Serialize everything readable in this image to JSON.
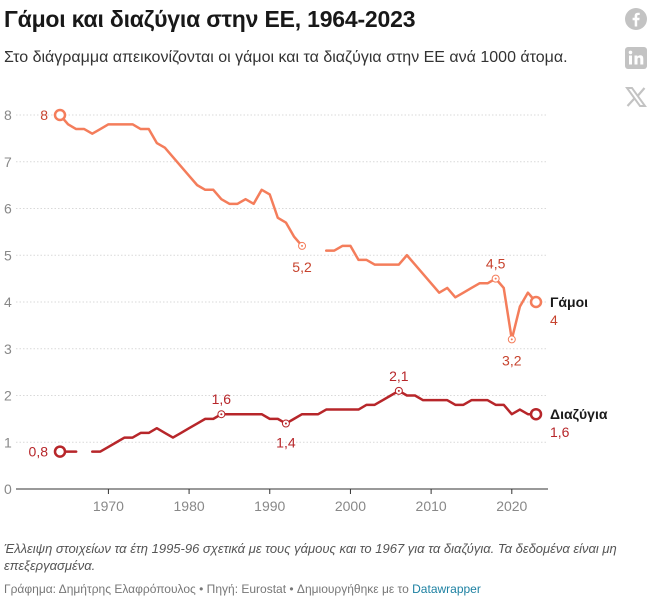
{
  "header": {
    "title": "Γάμοι και διαζύγια στην ΕΕ, 1964-2023",
    "subtitle": "Στο διάγραμμα απεικονίζονται οι γάμοι και τα διαζύγια στην ΕΕ ανά 1000 άτομα."
  },
  "share": [
    {
      "name": "facebook-icon",
      "color": "#c3c3c3"
    },
    {
      "name": "linkedin-icon",
      "color": "#c3c3c3"
    },
    {
      "name": "x-icon",
      "color": "#c3c3c3"
    }
  ],
  "footer": {
    "note": "Έλλειψη στοιχείων τα έτη 1995-96 σχετικά με τους γάμους και το 1967 για τα διαζύγια.  Τα δεδομένα είναι μη επεξεργασμένα.",
    "byline_prefix": "Γράφημα: Δημήτρης Ελαφρόπουλος • Πηγή: Eurostat • Δημιουργήθηκε με το ",
    "byline_link": "Datawrapper"
  },
  "chart_data": {
    "type": "line",
    "title": "Γάμοι και διαζύγια στην ΕΕ, 1964-2023",
    "xlabel": "",
    "ylabel": "",
    "xlim": [
      1964,
      2023
    ],
    "ylim": [
      0,
      8
    ],
    "xticks": [
      1970,
      1980,
      1990,
      2000,
      2010,
      2020
    ],
    "yticks": [
      0,
      1,
      2,
      3,
      4,
      5,
      6,
      7,
      8
    ],
    "grid": "horizontal dashed",
    "legend": "direct labels at line ends",
    "series": [
      {
        "name": "Γάμοι",
        "color": "#f47d5b",
        "label_color": "#c7432e",
        "segments": [
          {
            "x": [
              1964,
              1965,
              1966,
              1967,
              1968,
              1969,
              1970,
              1971,
              1972,
              1973,
              1974,
              1975,
              1976,
              1977,
              1978,
              1979,
              1980,
              1981,
              1982,
              1983,
              1984,
              1985,
              1986,
              1987,
              1988,
              1989,
              1990,
              1991,
              1992,
              1993,
              1994
            ],
            "y": [
              8,
              7.8,
              7.7,
              7.7,
              7.6,
              7.7,
              7.8,
              7.8,
              7.8,
              7.8,
              7.7,
              7.7,
              7.4,
              7.3,
              7.1,
              6.9,
              6.7,
              6.5,
              6.4,
              6.4,
              6.2,
              6.1,
              6.1,
              6.2,
              6.1,
              6.4,
              6.3,
              5.8,
              5.7,
              5.4,
              5.2
            ]
          },
          {
            "x": [
              1997,
              1998,
              1999,
              2000,
              2001,
              2002,
              2003,
              2004,
              2005,
              2006,
              2007,
              2008,
              2009,
              2010,
              2011,
              2012,
              2013,
              2014,
              2015,
              2016,
              2017,
              2018,
              2019,
              2020,
              2021,
              2022,
              2023
            ],
            "y": [
              5.1,
              5.1,
              5.2,
              5.2,
              4.9,
              4.9,
              4.8,
              4.8,
              4.8,
              4.8,
              5,
              4.8,
              4.6,
              4.4,
              4.2,
              4.3,
              4.1,
              4.2,
              4.3,
              4.4,
              4.4,
              4.5,
              4.3,
              3.2,
              3.9,
              4.2,
              4
            ]
          }
        ],
        "annotations": [
          {
            "x": 1964,
            "y": 8,
            "text": "8"
          },
          {
            "x": 1994,
            "y": 5.2,
            "text": "5,2"
          },
          {
            "x": 2018,
            "y": 4.5,
            "text": "4,5"
          },
          {
            "x": 2020,
            "y": 3.2,
            "text": "3,2"
          },
          {
            "x": 2023,
            "y": 4,
            "text": "4"
          }
        ]
      },
      {
        "name": "Διαζύγια",
        "color": "#b7262a",
        "label_color": "#b7262a",
        "segments": [
          {
            "x": [
              1964,
              1965,
              1966
            ],
            "y": [
              0.8,
              0.8,
              0.8
            ]
          },
          {
            "x": [
              1968,
              1969,
              1970,
              1971,
              1972,
              1973,
              1974,
              1975,
              1976,
              1977,
              1978,
              1979,
              1980,
              1981,
              1982,
              1983,
              1984,
              1985,
              1986,
              1987,
              1988,
              1989,
              1990,
              1991,
              1992,
              1993,
              1994,
              1995,
              1996,
              1997,
              1998,
              1999,
              2000,
              2001,
              2002,
              2003,
              2004,
              2005,
              2006,
              2007,
              2008,
              2009,
              2010,
              2011,
              2012,
              2013,
              2014,
              2015,
              2016,
              2017,
              2018,
              2019,
              2020,
              2021,
              2022,
              2023
            ],
            "y": [
              0.8,
              0.8,
              0.9,
              1,
              1.1,
              1.1,
              1.2,
              1.2,
              1.3,
              1.2,
              1.1,
              1.2,
              1.3,
              1.4,
              1.5,
              1.5,
              1.6,
              1.6,
              1.6,
              1.6,
              1.6,
              1.6,
              1.5,
              1.5,
              1.4,
              1.5,
              1.6,
              1.6,
              1.6,
              1.7,
              1.7,
              1.7,
              1.7,
              1.7,
              1.8,
              1.8,
              1.9,
              2,
              2.1,
              2,
              2,
              1.9,
              1.9,
              1.9,
              1.9,
              1.8,
              1.8,
              1.9,
              1.9,
              1.9,
              1.8,
              1.8,
              1.6,
              1.7,
              1.6,
              1.6
            ]
          }
        ],
        "annotations": [
          {
            "x": 1964,
            "y": 0.8,
            "text": "0,8"
          },
          {
            "x": 1984,
            "y": 1.6,
            "text": "1,6"
          },
          {
            "x": 1992,
            "y": 1.4,
            "text": "1,4"
          },
          {
            "x": 2006,
            "y": 2.1,
            "text": "2,1"
          },
          {
            "x": 2023,
            "y": 1.6,
            "text": "1,6"
          }
        ]
      }
    ]
  }
}
